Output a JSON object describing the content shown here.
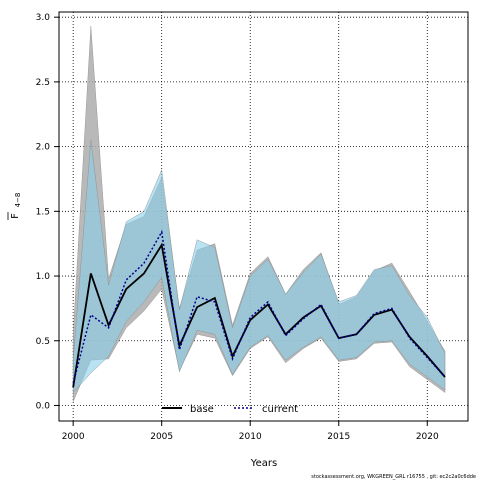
{
  "chart_data": {
    "type": "line",
    "title": "",
    "xlabel": "Years",
    "ylabel_main": "F",
    "ylabel_sub": "4−8",
    "xlim": [
      1999.2,
      2022.3
    ],
    "ylim": [
      -0.12,
      3.04
    ],
    "x_ticks": [
      2000,
      2005,
      2010,
      2015,
      2020
    ],
    "y_ticks": [
      "0.0",
      "0.5",
      "1.0",
      "1.5",
      "2.0",
      "2.5",
      "3.0"
    ],
    "grid": true,
    "legend_position": "bottom-center",
    "x": [
      2000,
      2001,
      2002,
      2003,
      2004,
      2005,
      2006,
      2007,
      2008,
      2009,
      2010,
      2011,
      2012,
      2013,
      2014,
      2015,
      2016,
      2017,
      2018,
      2019,
      2020,
      2021
    ],
    "series": [
      {
        "name": "base",
        "color": "#000000",
        "band_color": "#a9a9a9",
        "values": [
          0.14,
          1.02,
          0.62,
          0.9,
          1.02,
          1.24,
          0.46,
          0.76,
          0.83,
          0.38,
          0.66,
          0.78,
          0.55,
          0.68,
          0.77,
          0.52,
          0.55,
          0.7,
          0.74,
          0.53,
          0.38,
          0.22
        ],
        "lower": [
          0.03,
          0.35,
          0.36,
          0.6,
          0.73,
          0.9,
          0.27,
          0.55,
          0.52,
          0.23,
          0.44,
          0.53,
          0.33,
          0.44,
          0.52,
          0.34,
          0.36,
          0.48,
          0.49,
          0.3,
          0.2,
          0.1
        ],
        "upper": [
          0.55,
          2.93,
          0.98,
          1.4,
          1.46,
          1.76,
          0.75,
          1.2,
          1.25,
          0.62,
          1.02,
          1.15,
          0.86,
          1.05,
          1.18,
          0.78,
          0.84,
          1.04,
          1.1,
          0.88,
          0.65,
          0.42
        ]
      },
      {
        "name": "current",
        "color": "#00008b",
        "band_color": "#87ceeb",
        "values": [
          0.17,
          0.7,
          0.6,
          0.97,
          1.1,
          1.34,
          0.43,
          0.84,
          0.8,
          0.36,
          0.68,
          0.8,
          0.54,
          0.67,
          0.78,
          0.52,
          0.55,
          0.71,
          0.75,
          0.52,
          0.37,
          0.22
        ],
        "lower": [
          0.1,
          0.25,
          0.38,
          0.65,
          0.8,
          0.99,
          0.26,
          0.58,
          0.55,
          0.24,
          0.45,
          0.54,
          0.35,
          0.45,
          0.53,
          0.35,
          0.37,
          0.49,
          0.5,
          0.32,
          0.22,
          0.12
        ],
        "upper": [
          0.35,
          2.05,
          0.93,
          1.42,
          1.5,
          1.82,
          0.74,
          1.28,
          1.22,
          0.6,
          1.0,
          1.13,
          0.86,
          1.03,
          1.17,
          0.8,
          0.85,
          1.05,
          1.08,
          0.85,
          0.68,
          0.4
        ]
      }
    ]
  },
  "footer": "stockassessment.org, WKGREEN_GRL r16755 , git: ec2c2a0c6dde"
}
